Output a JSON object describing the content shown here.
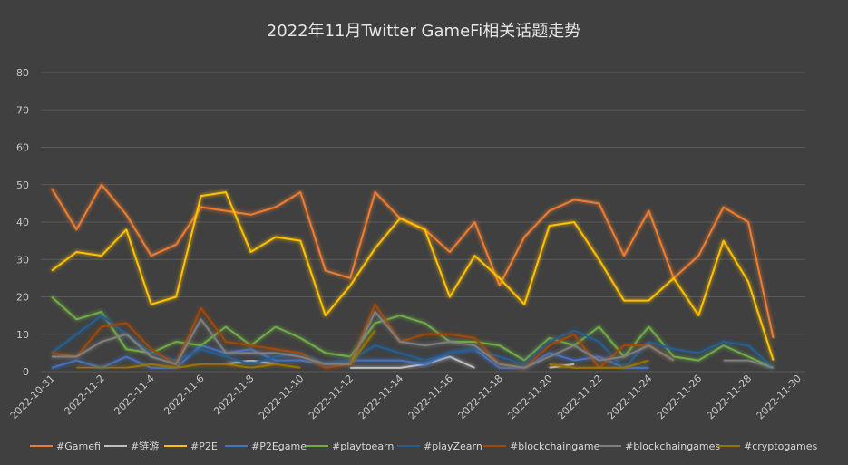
{
  "chart_data": {
    "type": "line",
    "title": "2022年11月Twitter GameFi相关话题走势",
    "xlabel": "",
    "ylabel": "",
    "ylim": [
      0,
      80
    ],
    "yticks": [
      "0",
      "10",
      "20",
      "30",
      "40",
      "50",
      "60",
      "70",
      "80"
    ],
    "x": [
      "2022-10-31",
      "2022-11-1",
      "2022-11-2",
      "2022-11-3",
      "2022-11-4",
      "2022-11-5",
      "2022-11-6",
      "2022-11-7",
      "2022-11-8",
      "2022-11-9",
      "2022-11-10",
      "2022-11-11",
      "2022-11-12",
      "2022-11-13",
      "2022-11-14",
      "2022-11-15",
      "2022-11-16",
      "2022-11-17",
      "2022-11-18",
      "2022-11-19",
      "2022-11-20",
      "2022-11-21",
      "2022-11-22",
      "2022-11-23",
      "2022-11-24",
      "2022-11-25",
      "2022-11-26",
      "2022-11-27",
      "2022-11-28",
      "2022-11-29",
      "2022-11-30"
    ],
    "xtick_labels": [
      "2022-10-31",
      "",
      "2022-11-2",
      "",
      "2022-11-4",
      "",
      "2022-11-6",
      "",
      "2022-11-8",
      "",
      "2022-11-10",
      "",
      "2022-11-12",
      "",
      "2022-11-14",
      "",
      "2022-11-16",
      "",
      "2022-11-18",
      "",
      "2022-11-20",
      "",
      "2022-11-22",
      "",
      "2022-11-24",
      "",
      "2022-11-26",
      "",
      "2022-11-28",
      "",
      "2022-11-30"
    ],
    "grid": true,
    "legend_position": "bottom",
    "series": [
      {
        "name": "#Gamefi",
        "color": "#ed7d31",
        "values": [
          49,
          38,
          50,
          42,
          31,
          34,
          44,
          43,
          42,
          44,
          48,
          27,
          25,
          48,
          41,
          38,
          32,
          40,
          23,
          36,
          43,
          46,
          45,
          31,
          43,
          25,
          31,
          44,
          40,
          9,
          null
        ]
      },
      {
        "name": "#链游",
        "color": "#bfbfbf",
        "values": [
          null,
          1,
          1,
          1,
          null,
          null,
          null,
          2,
          3,
          2,
          null,
          null,
          1,
          1,
          1,
          2,
          4,
          1,
          null,
          null,
          1,
          2,
          null,
          null,
          null,
          null,
          null,
          null,
          null,
          null,
          null
        ]
      },
      {
        "name": "#P2E",
        "color": "#ffc000",
        "values": [
          27,
          32,
          31,
          38,
          18,
          20,
          47,
          48,
          32,
          36,
          35,
          15,
          23,
          33,
          41,
          38,
          20,
          31,
          25,
          18,
          39,
          40,
          30,
          19,
          19,
          25,
          15,
          35,
          24,
          3,
          null
        ]
      },
      {
        "name": "#P2Egame",
        "color": "#4472c4",
        "values": [
          1,
          3,
          1,
          4,
          1,
          1,
          7,
          5,
          6,
          3,
          3,
          2,
          3,
          3,
          3,
          2,
          5,
          6,
          1,
          1,
          5,
          3,
          4,
          1,
          1,
          null,
          null,
          null,
          null,
          null,
          null
        ]
      },
      {
        "name": "#playtoearn",
        "color": "#70ad47",
        "values": [
          20,
          14,
          16,
          6,
          5,
          8,
          7,
          12,
          7,
          12,
          9,
          5,
          4,
          13,
          15,
          13,
          8,
          8,
          7,
          3,
          9,
          7,
          12,
          4,
          12,
          4,
          3,
          7,
          4,
          1,
          null
        ]
      },
      {
        "name": "#playZearn",
        "color": "#255e91",
        "values": [
          5,
          10,
          15,
          10,
          5,
          3,
          6,
          4,
          2,
          4,
          5,
          2,
          3,
          7,
          5,
          3,
          5,
          6,
          4,
          2,
          8,
          11,
          8,
          1,
          8,
          6,
          5,
          8,
          7,
          1,
          null
        ]
      },
      {
        "name": "#blockchaingame",
        "color": "#9e480e",
        "values": [
          5,
          4,
          12,
          13,
          6,
          2,
          17,
          8,
          7,
          6,
          5,
          1,
          2,
          18,
          8,
          10,
          10,
          9,
          2,
          1,
          7,
          10,
          1,
          7,
          7,
          3,
          null,
          null,
          null,
          null,
          null
        ]
      },
      {
        "name": "#blockchaingames",
        "color": "#7f7f7f",
        "values": [
          4,
          4,
          8,
          10,
          4,
          2,
          14,
          5,
          5,
          5,
          4,
          2,
          2,
          16,
          8,
          7,
          8,
          7,
          2,
          1,
          4,
          7,
          3,
          4,
          7,
          3,
          null,
          3,
          3,
          1,
          null
        ]
      },
      {
        "name": "#cryptogames",
        "color": "#997300",
        "values": [
          null,
          1,
          1,
          1,
          2,
          1,
          2,
          2,
          1,
          2,
          1,
          null,
          2,
          11,
          null,
          null,
          null,
          null,
          null,
          null,
          2,
          1,
          1,
          1,
          3,
          null,
          null,
          null,
          null,
          null,
          null
        ]
      }
    ]
  }
}
